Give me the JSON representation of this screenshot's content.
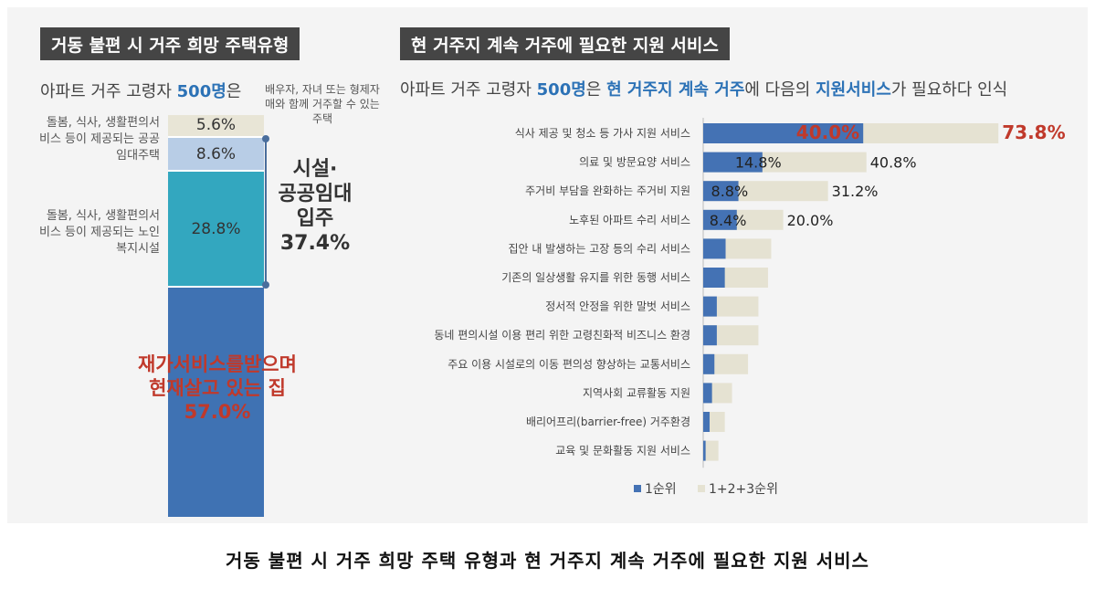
{
  "left": {
    "heading": "거동 불편 시 거주 희망 주택유형",
    "subtitle_prefix": "아파트 거주 고령자 ",
    "subtitle_count": "500명",
    "subtitle_suffix": "은",
    "note": "배우자, 자녀 또는 형제자매와 함께 거주할 수 있는 주택",
    "segments": [
      {
        "label": "5.6%",
        "value": 5.6,
        "color": "#e8e5d6"
      },
      {
        "label": "8.6%",
        "value": 8.6,
        "color": "#b8cde6"
      },
      {
        "label": "28.8%",
        "value": 28.8,
        "color": "#33a7bf"
      },
      {
        "label": "",
        "value": 57.0,
        "color": "#3f72b3"
      }
    ],
    "side_labels": [
      "돌봄, 식사, 생활편의서비스 등이 제공되는 공공임대주택",
      "돌봄, 식사, 생활편의서비스 등이 제공되는 노인복지시설"
    ],
    "group_label": "시설·공공임대 입주 37.4%",
    "group_label_lines": [
      "시설·",
      "공공임대",
      "입주",
      "37.4%"
    ],
    "home_label_lines": [
      "재가서비스를받으며",
      "현재살고 있는 집",
      "57.0%"
    ]
  },
  "right": {
    "heading": "현 거주지 계속 거주에 필요한 지원 서비스",
    "subtitle_prefix": "아파트 거주 고령자 ",
    "subtitle_count": "500명",
    "subtitle_mid": "은 ",
    "subtitle_em1": "현 거주지 계속 거주",
    "subtitle_mid2": "에 다음의 ",
    "subtitle_em2": "지원서비스",
    "subtitle_suffix": "가 필요하다 인식"
  },
  "chart_data": {
    "type": "bar",
    "orientation": "horizontal",
    "categories": [
      "식사 제공 및 청소 등 가사 지원 서비스",
      "의료 및 방문요양 서비스",
      "주거비 부담을 완화하는 주거비 지원",
      "노후된 아파트 수리 서비스",
      "집안 내 발생하는 고장 등의 수리 서비스",
      "기존의 일상생활 유지를 위한 동행 서비스",
      "정서적 안정을 위한 말벗 서비스",
      "동네 편의시설 이용 편리 위한 고령친화적 비즈니스 환경",
      "주요 이용 시설로의 이동 편의성 향상하는 교통서비스",
      "지역사회 교류활동 지원",
      "배리어프리(barrier-free) 거주환경",
      "교육 및 문화활동 지원 서비스"
    ],
    "series": [
      {
        "name": "1순위",
        "color": "#4472b4",
        "values": [
          40.0,
          14.8,
          8.8,
          8.4,
          5.6,
          5.4,
          3.4,
          3.4,
          2.8,
          2.2,
          1.6,
          0.6
        ],
        "labels": [
          "40.0%",
          "14.8%",
          "8.8%",
          "8.4%",
          "",
          "",
          "",
          "",
          "",
          "",
          "",
          ""
        ]
      },
      {
        "name": "1+2+3순위",
        "color": "#e5e2d2",
        "values": [
          73.8,
          40.8,
          31.2,
          20.0,
          17.0,
          16.2,
          13.8,
          13.8,
          11.2,
          7.2,
          5.4,
          3.8
        ],
        "labels": [
          "73.8%",
          "40.8%",
          "31.2%",
          "20.0%",
          "",
          "",
          "",
          "",
          "",
          "",
          "",
          ""
        ]
      }
    ],
    "xlim": [
      0,
      80
    ],
    "highlight_color": "#c0392b"
  },
  "caption": "거동 불편 시 거주 희망 주택 유형과 현 거주지 계속 거주에 필요한 지원 서비스"
}
